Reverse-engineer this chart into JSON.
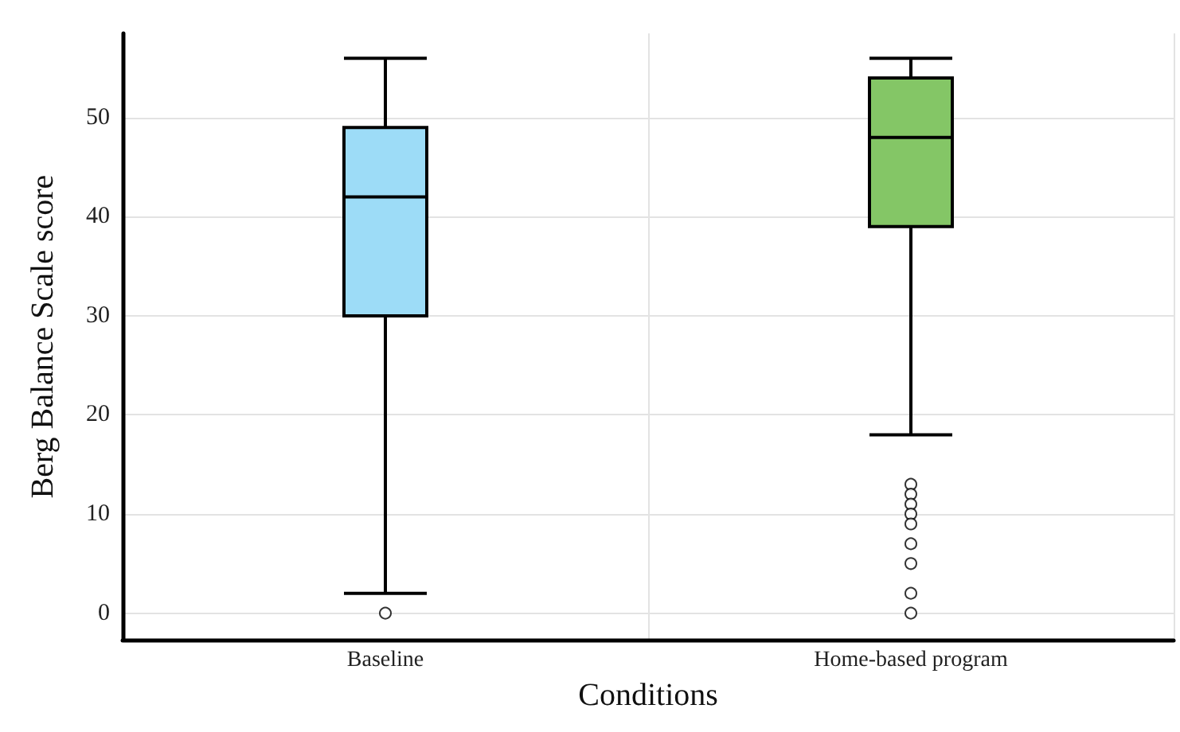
{
  "chart_data": {
    "type": "box",
    "xlabel": "Conditions",
    "ylabel": "Berg Balance Scale score",
    "categories": [
      "Baseline",
      "Home-based program"
    ],
    "colors": [
      "#9ddcf7",
      "#84c666"
    ],
    "boxes": [
      {
        "low": 2,
        "q1": 30,
        "median": 42,
        "q3": 49,
        "high": 56,
        "outliers": [
          0
        ]
      },
      {
        "low": 18,
        "q1": 39,
        "median": 48,
        "q3": 54,
        "high": 56,
        "outliers": [
          13,
          12,
          11,
          10,
          9,
          7,
          5,
          2,
          0
        ]
      }
    ],
    "ylim": [
      -2.7,
      58.5
    ],
    "yticks": [
      0,
      10,
      20,
      30,
      40,
      50
    ],
    "grid": true,
    "marker": "circle"
  }
}
